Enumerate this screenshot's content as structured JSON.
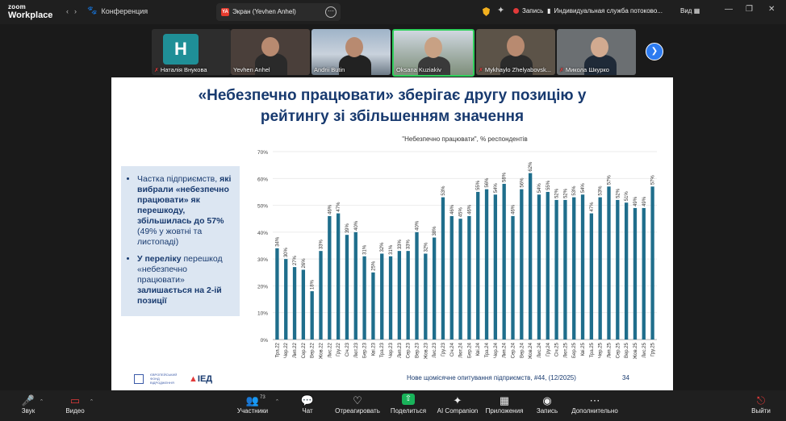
{
  "app": {
    "logo_line1": "zoom",
    "logo_line2": "Workplace",
    "conference_label": "Конференция",
    "screen_tab_label": "Экран (Yevhen Anhel)",
    "record_label": "Запись",
    "stream_label": "Индивидуальная служба потоково...",
    "view_label": "Вид"
  },
  "participants": [
    {
      "name": "Наталія Внукова",
      "initial": "H",
      "muted": true
    },
    {
      "name": "Yevhen Anhel",
      "muted": false
    },
    {
      "name": "Andrii Butin",
      "muted": false
    },
    {
      "name": "Oksana Kuziakiv",
      "muted": false
    },
    {
      "name": "Mykhaylo Zhelyabovsk...",
      "muted": true
    },
    {
      "name": "Микола Шкурко",
      "muted": true
    }
  ],
  "slide": {
    "title_line1": "«Небезпечно працювати» зберігає другу позицію у",
    "title_line2": "рейтингу зі збільшенням значення",
    "bullet1_pre": "Частка підприємств, ",
    "bullet1_bold": "які вибрали «небезпечно працювати» як перешкоду, збільшилась до 57%",
    "bullet1_post": " (49% у жовтні та листопаді)",
    "bullet2_bold1": "У переліку",
    "bullet2_mid": " перешкод «небезпечно працювати» ",
    "bullet2_bold2": "залишається на 2-ій позиції",
    "fund_text": "ЄВРОПЕЙСЬКИЙ ФОНД ВІДРОДЖЕННЯ",
    "ied_logo": "ІЕД",
    "source": "Нове щомісячне опитування підприємств, #44, (12/2025)",
    "page_number": "34"
  },
  "chart_data": {
    "type": "bar",
    "title": "\"Небезпечно працювати\", % респондентів",
    "ylim": [
      0,
      70
    ],
    "yticks": [
      0,
      10,
      20,
      30,
      40,
      50,
      60,
      70
    ],
    "ytick_labels": [
      "0%",
      "10%",
      "20%",
      "30%",
      "40%",
      "50%",
      "60%",
      "70%"
    ],
    "bar_color": "#1f6e8c",
    "categories": [
      "Тра.22",
      "Чер.22",
      "Лип.22",
      "Сер.22",
      "Вер.22",
      "Жов.22",
      "Лис.22",
      "Гру.22",
      "Січ.23",
      "Лют.23",
      "Бер.23",
      "Кві.23",
      "Тра.23",
      "Чер.23",
      "Лип.23",
      "Сер.23",
      "Вер.23",
      "Жов.23",
      "Лис.23",
      "Гру.23",
      "Січ.24",
      "Лют.24",
      "Бер.24",
      "Кві.24",
      "Тра.24",
      "Чер.24",
      "Лип.24",
      "Сер.24",
      "Вер.24",
      "Жов.24",
      "Лис.24",
      "Гру.24",
      "Січ.25",
      "Лют.25",
      "Бер.25",
      "Кві.25",
      "Тра.25",
      "Чер.25",
      "Лип.25",
      "Сер.25",
      "Вер.25",
      "Жов.25",
      "Лис.25",
      "Гру.25"
    ],
    "values": [
      34,
      30,
      27,
      26,
      18,
      33,
      46,
      47,
      39,
      40,
      31,
      25,
      32,
      31,
      33,
      33,
      40,
      32,
      38,
      53,
      46,
      45,
      46,
      55,
      56,
      54,
      58,
      46,
      56,
      62,
      54,
      55,
      52,
      52,
      53,
      54,
      47,
      53,
      57,
      52,
      51,
      49,
      49,
      57
    ]
  },
  "toolbar": {
    "audio": "Звук",
    "video": "Видео",
    "participants": "Участники",
    "participants_count": "73",
    "chat": "Чат",
    "react": "Отреагировать",
    "share": "Поделиться",
    "ai": "AI Companion",
    "apps": "Приложения",
    "record": "Запись",
    "more": "Дополнительно",
    "exit": "Выйти"
  }
}
